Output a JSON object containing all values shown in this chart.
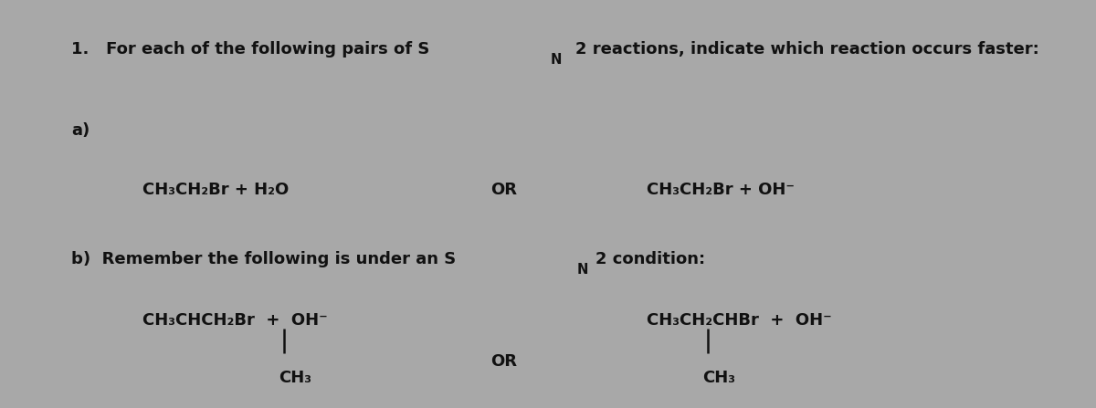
{
  "background_color": "#a8a8a8",
  "text_color": "#111111",
  "fig_width": 12.0,
  "fig_height": 4.47,
  "dpi": 100,
  "font_size": 13.0,
  "font_size_small": 10.5,
  "title_num": "1.",
  "title_main_pre": "   For each of the following pairs of S",
  "title_SN2": "N",
  "title_main_post": "2 reactions, indicate which reaction occurs faster:",
  "label_a": "a)",
  "rxn_a_left": "CH₃CH₂Br + H₂O",
  "rxn_a_or": "OR",
  "rxn_a_right": "CH₃CH₂Br + OH⁻",
  "label_b_pre": "b)  Remember the following is under an S",
  "label_b_SN2": "N",
  "label_b_post": "2 condition:",
  "rxn_b_left_main": "CH₃CHCH₂Br  +  OH⁻",
  "rxn_b_left_sub": "CH₃",
  "rxn_b_or": "OR",
  "rxn_b_right_main": "CH₃CH₂CHBr  +  OH⁻",
  "rxn_b_right_sub": "CH₃",
  "lc": "#111111",
  "lw": 1.8
}
